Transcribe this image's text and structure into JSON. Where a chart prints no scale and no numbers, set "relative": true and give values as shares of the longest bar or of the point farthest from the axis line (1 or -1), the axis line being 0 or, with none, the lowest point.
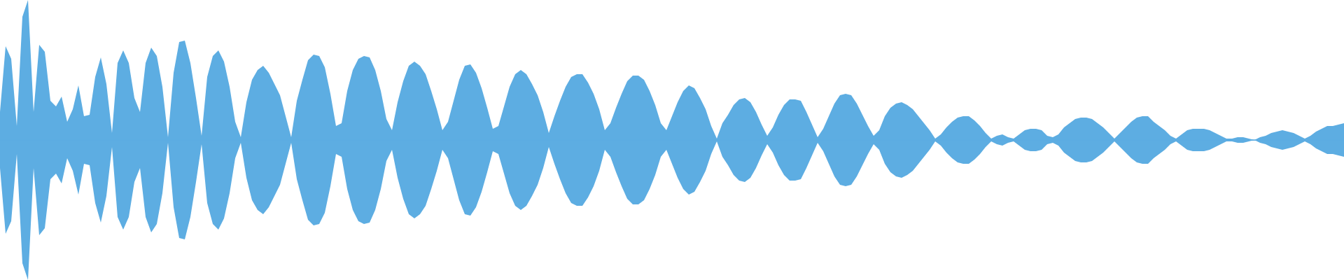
{
  "chart_data": {
    "type": "area",
    "relative": true,
    "categories": [
      null,
      null,
      null,
      null,
      null,
      null,
      null,
      null,
      null,
      null,
      null,
      null,
      null,
      null,
      null,
      null,
      null,
      null,
      null,
      null,
      null,
      null,
      null,
      null,
      null,
      null,
      null,
      null,
      null,
      null,
      null,
      null,
      null,
      null,
      null,
      null,
      null,
      null,
      null,
      null,
      null,
      null,
      null,
      null,
      null,
      null,
      null,
      null,
      null,
      null,
      null,
      null,
      null,
      null,
      null,
      null,
      null,
      null,
      null,
      null,
      null,
      null,
      null,
      null,
      null,
      null,
      null,
      null,
      null,
      null,
      null,
      null,
      null,
      null,
      null,
      null,
      null,
      null,
      null,
      null,
      null,
      null,
      null,
      null,
      null,
      null,
      null,
      null,
      null,
      null,
      null,
      null,
      null,
      null,
      null,
      null,
      null,
      null,
      null,
      null,
      null,
      null,
      null,
      null,
      null,
      null,
      null,
      null,
      null,
      null,
      null,
      null,
      null,
      null,
      null,
      null,
      null,
      null,
      null,
      null,
      null,
      null,
      null,
      null,
      null,
      null,
      null,
      null,
      null,
      null,
      null,
      null,
      null,
      null,
      null,
      null,
      null,
      null,
      null,
      null,
      null,
      null,
      null,
      null,
      null,
      null,
      null,
      null,
      null,
      null,
      null,
      null,
      null,
      null,
      null,
      null,
      null,
      null,
      null,
      null,
      null,
      null,
      null,
      null,
      null,
      null,
      null,
      null,
      null,
      null,
      null,
      null,
      null,
      null,
      null,
      null,
      null,
      null,
      null,
      null,
      null,
      null,
      null,
      null,
      null,
      null,
      null,
      null,
      null,
      null,
      null,
      null,
      null,
      null,
      null,
      null,
      null,
      null,
      null,
      null,
      null,
      null,
      null,
      null,
      null,
      null,
      null,
      null,
      null,
      null,
      null,
      null,
      null,
      null,
      null,
      null,
      null,
      null,
      null,
      null,
      null,
      null,
      null,
      null,
      null,
      null,
      null,
      null,
      null,
      null,
      null,
      null,
      null,
      null,
      null,
      null,
      null,
      null,
      null,
      null,
      null
    ],
    "series": [
      {
        "color": "#5dade2",
        "values": [
          0.2,
          0.67,
          0.58,
          0.1,
          0.88,
          1.0,
          0.2,
          0.68,
          0.63,
          0.28,
          0.24,
          0.31,
          0.13,
          0.22,
          0.39,
          0.17,
          0.18,
          0.45,
          0.59,
          0.4,
          0.05,
          0.55,
          0.64,
          0.55,
          0.3,
          0.2,
          0.55,
          0.66,
          0.6,
          0.38,
          0.02,
          0.48,
          0.7,
          0.71,
          0.55,
          0.3,
          0.03,
          0.45,
          0.6,
          0.64,
          0.56,
          0.38,
          0.13,
          0.02,
          0.27,
          0.43,
          0.5,
          0.53,
          0.48,
          0.4,
          0.32,
          0.17,
          0.02,
          0.28,
          0.43,
          0.57,
          0.61,
          0.6,
          0.52,
          0.33,
          0.1,
          0.12,
          0.35,
          0.5,
          0.58,
          0.6,
          0.59,
          0.5,
          0.35,
          0.15,
          0.07,
          0.27,
          0.42,
          0.53,
          0.56,
          0.53,
          0.47,
          0.35,
          0.22,
          0.07,
          0.13,
          0.28,
          0.43,
          0.53,
          0.54,
          0.48,
          0.37,
          0.23,
          0.08,
          0.1,
          0.24,
          0.38,
          0.47,
          0.5,
          0.47,
          0.4,
          0.32,
          0.2,
          0.05,
          0.17,
          0.28,
          0.38,
          0.45,
          0.47,
          0.47,
          0.41,
          0.33,
          0.22,
          0.07,
          0.12,
          0.23,
          0.33,
          0.42,
          0.46,
          0.46,
          0.43,
          0.35,
          0.25,
          0.12,
          0.07,
          0.17,
          0.27,
          0.35,
          0.39,
          0.37,
          0.3,
          0.22,
          0.1,
          0.01,
          0.12,
          0.18,
          0.25,
          0.29,
          0.3,
          0.27,
          0.2,
          0.11,
          0.03,
          0.09,
          0.18,
          0.25,
          0.29,
          0.29,
          0.28,
          0.2,
          0.11,
          0.02,
          0.08,
          0.17,
          0.26,
          0.32,
          0.33,
          0.32,
          0.26,
          0.18,
          0.1,
          0.03,
          0.07,
          0.17,
          0.23,
          0.26,
          0.27,
          0.25,
          0.22,
          0.17,
          0.12,
          0.07,
          0.01,
          0.04,
          0.09,
          0.13,
          0.16,
          0.17,
          0.17,
          0.14,
          0.1,
          0.05,
          0.01,
          0.03,
          0.04,
          0.02,
          0.01,
          0.04,
          0.07,
          0.08,
          0.08,
          0.07,
          0.03,
          0.02,
          0.04,
          0.09,
          0.12,
          0.15,
          0.16,
          0.16,
          0.15,
          0.12,
          0.09,
          0.05,
          0.01,
          0.05,
          0.09,
          0.13,
          0.16,
          0.17,
          0.17,
          0.13,
          0.1,
          0.07,
          0.03,
          0.01,
          0.04,
          0.07,
          0.08,
          0.08,
          0.08,
          0.07,
          0.05,
          0.03,
          0.01,
          0.01,
          0.02,
          0.02,
          0.01,
          0,
          0.02,
          0.03,
          0.05,
          0.06,
          0.07,
          0.06,
          0.05,
          0.03,
          0.01,
          0.03,
          0.06,
          0.08,
          0.1,
          0.1,
          0.11,
          0.12
        ]
      },
      {
        "color": "#5dade2",
        "values": [
          -0.2,
          -0.67,
          -0.58,
          -0.1,
          -0.88,
          -1.0,
          -0.2,
          -0.68,
          -0.63,
          -0.28,
          -0.24,
          -0.31,
          -0.13,
          -0.22,
          -0.39,
          -0.17,
          -0.18,
          -0.45,
          -0.59,
          -0.4,
          -0.05,
          -0.55,
          -0.64,
          -0.55,
          -0.3,
          -0.2,
          -0.55,
          -0.66,
          -0.6,
          -0.38,
          -0.02,
          -0.48,
          -0.7,
          -0.71,
          -0.55,
          -0.3,
          -0.03,
          -0.45,
          -0.6,
          -0.64,
          -0.56,
          -0.38,
          -0.13,
          -0.02,
          -0.27,
          -0.43,
          -0.5,
          -0.53,
          -0.48,
          -0.4,
          -0.32,
          -0.17,
          -0.02,
          -0.28,
          -0.43,
          -0.57,
          -0.61,
          -0.6,
          -0.52,
          -0.33,
          -0.1,
          -0.12,
          -0.35,
          -0.5,
          -0.58,
          -0.6,
          -0.59,
          -0.5,
          -0.35,
          -0.15,
          -0.07,
          -0.27,
          -0.42,
          -0.53,
          -0.56,
          -0.53,
          -0.47,
          -0.35,
          -0.22,
          -0.07,
          -0.13,
          -0.28,
          -0.43,
          -0.53,
          -0.54,
          -0.48,
          -0.37,
          -0.23,
          -0.08,
          -0.1,
          -0.24,
          -0.38,
          -0.47,
          -0.5,
          -0.47,
          -0.4,
          -0.32,
          -0.2,
          -0.05,
          -0.17,
          -0.28,
          -0.38,
          -0.45,
          -0.47,
          -0.47,
          -0.41,
          -0.33,
          -0.22,
          -0.07,
          -0.12,
          -0.23,
          -0.33,
          -0.42,
          -0.46,
          -0.46,
          -0.43,
          -0.35,
          -0.25,
          -0.12,
          -0.07,
          -0.17,
          -0.27,
          -0.35,
          -0.39,
          -0.37,
          -0.3,
          -0.22,
          -0.1,
          -0.01,
          -0.12,
          -0.18,
          -0.25,
          -0.29,
          -0.3,
          -0.27,
          -0.2,
          -0.11,
          -0.03,
          -0.09,
          -0.18,
          -0.25,
          -0.29,
          -0.29,
          -0.28,
          -0.2,
          -0.11,
          -0.02,
          -0.08,
          -0.17,
          -0.26,
          -0.32,
          -0.33,
          -0.32,
          -0.26,
          -0.18,
          -0.1,
          -0.03,
          -0.07,
          -0.17,
          -0.23,
          -0.26,
          -0.27,
          -0.25,
          -0.22,
          -0.17,
          -0.12,
          -0.07,
          -0.01,
          -0.04,
          -0.09,
          -0.13,
          -0.16,
          -0.17,
          -0.17,
          -0.14,
          -0.1,
          -0.05,
          -0.01,
          -0.03,
          -0.04,
          -0.02,
          -0.01,
          -0.04,
          -0.07,
          -0.08,
          -0.08,
          -0.07,
          -0.03,
          -0.02,
          -0.04,
          -0.09,
          -0.12,
          -0.15,
          -0.16,
          -0.16,
          -0.15,
          -0.12,
          -0.09,
          -0.05,
          -0.01,
          -0.05,
          -0.09,
          -0.13,
          -0.16,
          -0.17,
          -0.17,
          -0.13,
          -0.1,
          -0.07,
          -0.03,
          -0.01,
          -0.04,
          -0.07,
          -0.08,
          -0.08,
          -0.08,
          -0.07,
          -0.05,
          -0.03,
          -0.01,
          -0.01,
          -0.02,
          -0.02,
          -0.01,
          0,
          -0.02,
          -0.03,
          -0.05,
          -0.06,
          -0.07,
          -0.06,
          -0.05,
          -0.03,
          -0.01,
          -0.03,
          -0.06,
          -0.08,
          -0.1,
          -0.1,
          -0.11,
          -0.12
        ]
      }
    ],
    "ref_lines": [
      {
        "axis": "y",
        "value": 0,
        "color": "#5dade2"
      }
    ]
  }
}
